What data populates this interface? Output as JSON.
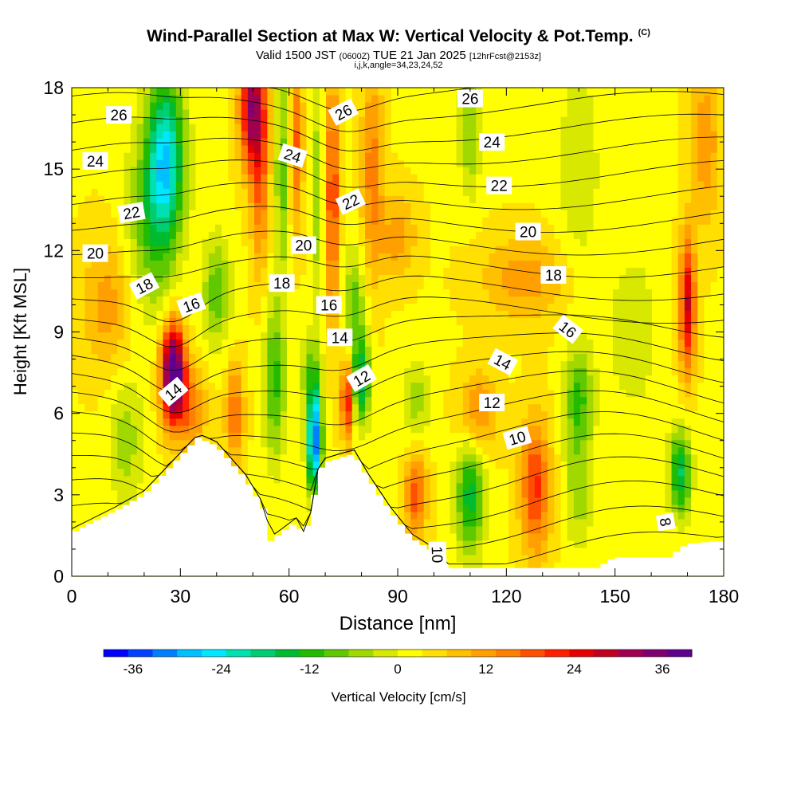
{
  "header": {
    "title": "Wind-Parallel Section at Max W: Vertical Velocity & Pot.Temp.",
    "copyright": "(C)",
    "valid": "Valid 1500 JST",
    "valid_z": "(0600Z)",
    "valid_date": "TUE 21 Jan 2025",
    "forecast": "[12hrFcst@2153z]",
    "params": "i,j,k,angle=34,23,24,52"
  },
  "chart_data": {
    "type": "heatmap",
    "xlabel": "Distance [nm]",
    "ylabel": "Height [Kft MSL]",
    "xlim": [
      0,
      180
    ],
    "ylim": [
      0,
      18
    ],
    "x_ticks": [
      "0",
      "30",
      "60",
      "90",
      "120",
      "150",
      "180"
    ],
    "y_ticks": [
      "0",
      "3",
      "6",
      "9",
      "12",
      "15",
      "18"
    ],
    "colorbar": {
      "label": "Vertical Velocity [cm/s]",
      "range": [
        -40,
        40
      ],
      "tick_labels": [
        "-36",
        "-24",
        "-12",
        "0",
        "12",
        "24",
        "36"
      ],
      "colors": [
        "#0000ff",
        "#0040ff",
        "#0080ff",
        "#00c0ff",
        "#00e8ff",
        "#00e0b0",
        "#00cc70",
        "#00bb30",
        "#22bb00",
        "#60c800",
        "#a0d800",
        "#d8e800",
        "#ffff00",
        "#ffe000",
        "#ffc000",
        "#ffa000",
        "#ff8000",
        "#ff5000",
        "#ff2000",
        "#e80000",
        "#c00020",
        "#a00050",
        "#800070",
        "#600090"
      ]
    },
    "terrain_profile": {
      "x": [
        0,
        12,
        20,
        35,
        40,
        48,
        53,
        55,
        58,
        62,
        64,
        66,
        68,
        70,
        75,
        78,
        82,
        88,
        94,
        100,
        102,
        104,
        110,
        120,
        140,
        145,
        150,
        155,
        160,
        165,
        170,
        180
      ],
      "height": [
        1.6,
        2.4,
        3.0,
        5.1,
        4.8,
        3.6,
        2.5,
        1.3,
        1.6,
        2.0,
        1.5,
        2.2,
        3.8,
        4.2,
        4.4,
        4.5,
        3.6,
        2.4,
        1.4,
        0.9,
        0.6,
        0.3,
        0.3,
        0.3,
        0.3,
        0.3,
        0.7,
        0.7,
        0.7,
        0.7,
        1.2,
        1.3
      ]
    },
    "vertical_velocity_cells": [
      {
        "x": 28,
        "y": 7.5,
        "sx": 3.2,
        "sy": 1.8,
        "w": 42
      },
      {
        "x": 33,
        "y": 6.2,
        "sx": 4,
        "sy": 1.5,
        "w": 12
      },
      {
        "x": 26,
        "y": 15.5,
        "sx": 5,
        "sy": 3.0,
        "w": -26
      },
      {
        "x": 22,
        "y": 13,
        "sx": 7,
        "sy": 3.5,
        "w": -12
      },
      {
        "x": 50,
        "y": 17.2,
        "sx": 3.5,
        "sy": 2.2,
        "w": 30
      },
      {
        "x": 52,
        "y": 14,
        "sx": 2.5,
        "sy": 3,
        "w": 12
      },
      {
        "x": 40,
        "y": 10.5,
        "sx": 4,
        "sy": 2,
        "w": -12
      },
      {
        "x": 45,
        "y": 6.0,
        "sx": 2.5,
        "sy": 1.8,
        "w": 14
      },
      {
        "x": 56,
        "y": 7.2,
        "sx": 3,
        "sy": 3,
        "w": -14
      },
      {
        "x": 58,
        "y": 15,
        "sx": 1.8,
        "sy": 4,
        "w": -12
      },
      {
        "x": 62,
        "y": 16,
        "sx": 1.8,
        "sy": 3,
        "w": 14
      },
      {
        "x": 67,
        "y": 5.0,
        "sx": 2.0,
        "sy": 1.8,
        "w": -38
      },
      {
        "x": 66,
        "y": 7.5,
        "sx": 3,
        "sy": 1.5,
        "w": -10
      },
      {
        "x": 72,
        "y": 14,
        "sx": 1.8,
        "sy": 4.5,
        "w": 18
      },
      {
        "x": 68,
        "y": 14,
        "sx": 1.5,
        "sy": 4,
        "w": -10
      },
      {
        "x": 76,
        "y": 6.5,
        "sx": 1.6,
        "sy": 1.5,
        "w": 22
      },
      {
        "x": 80,
        "y": 7.2,
        "sx": 2.5,
        "sy": 1.6,
        "w": -20
      },
      {
        "x": 78,
        "y": 10,
        "sx": 3,
        "sy": 2.0,
        "w": -12
      },
      {
        "x": 83,
        "y": 15,
        "sx": 3,
        "sy": 4,
        "w": 12
      },
      {
        "x": 95,
        "y": 3.0,
        "sx": 3,
        "sy": 1.5,
        "w": 16
      },
      {
        "x": 95,
        "y": 6.5,
        "sx": 4,
        "sy": 1.5,
        "w": -8
      },
      {
        "x": 110,
        "y": 3.0,
        "sx": 4,
        "sy": 2.2,
        "w": -18
      },
      {
        "x": 112,
        "y": 6.0,
        "sx": 5,
        "sy": 1.5,
        "w": 12
      },
      {
        "x": 128,
        "y": 3.3,
        "sx": 4,
        "sy": 2.5,
        "w": 18
      },
      {
        "x": 140,
        "y": 6.5,
        "sx": 4,
        "sy": 2.0,
        "w": -14
      },
      {
        "x": 140,
        "y": 3,
        "sx": 4,
        "sy": 2,
        "w": -8
      },
      {
        "x": 170,
        "y": 10,
        "sx": 2.2,
        "sy": 2.5,
        "w": 24
      },
      {
        "x": 168,
        "y": 3.8,
        "sx": 3,
        "sy": 1.6,
        "w": -20
      },
      {
        "x": 125,
        "y": 11,
        "sx": 12,
        "sy": 1.5,
        "w": 9
      },
      {
        "x": 110,
        "y": 16.5,
        "sx": 3,
        "sy": 2.5,
        "w": -10
      },
      {
        "x": 140,
        "y": 15,
        "sx": 6,
        "sy": 4,
        "w": -6
      },
      {
        "x": 175,
        "y": 16,
        "sx": 4,
        "sy": 3,
        "w": 10
      },
      {
        "x": 10,
        "y": 10,
        "sx": 7,
        "sy": 2.5,
        "w": 9
      },
      {
        "x": 15,
        "y": 5,
        "sx": 5,
        "sy": 2.5,
        "w": -8
      },
      {
        "x": 155,
        "y": 9,
        "sx": 7,
        "sy": 3,
        "w": -6
      },
      {
        "x": 90,
        "y": 12.5,
        "sx": 5,
        "sy": 1.5,
        "w": 9
      }
    ],
    "theta_contour_levels": [
      "8",
      "10",
      "12",
      "14",
      "16",
      "18",
      "20",
      "22",
      "24",
      "26"
    ],
    "contour_labels": [
      {
        "text": "26",
        "x": 13,
        "y": 17.0,
        "angle": 0
      },
      {
        "text": "24",
        "x": 6.5,
        "y": 15.3,
        "angle": 0
      },
      {
        "text": "22",
        "x": 16.5,
        "y": 13.4,
        "angle": -10
      },
      {
        "text": "20",
        "x": 6.5,
        "y": 11.9,
        "angle": 0
      },
      {
        "text": "18",
        "x": 20,
        "y": 10.7,
        "angle": -28
      },
      {
        "text": "16",
        "x": 33,
        "y": 10.0,
        "angle": -20
      },
      {
        "text": "14",
        "x": 28,
        "y": 6.8,
        "angle": -40
      },
      {
        "text": "26",
        "x": 75,
        "y": 17.1,
        "angle": -28
      },
      {
        "text": "24",
        "x": 61,
        "y": 15.5,
        "angle": 18
      },
      {
        "text": "22",
        "x": 77,
        "y": 13.8,
        "angle": -25
      },
      {
        "text": "20",
        "x": 64,
        "y": 12.2,
        "angle": 0
      },
      {
        "text": "18",
        "x": 58,
        "y": 10.8,
        "angle": 0
      },
      {
        "text": "16",
        "x": 71,
        "y": 10.0,
        "angle": 0
      },
      {
        "text": "14",
        "x": 74,
        "y": 8.8,
        "angle": 0
      },
      {
        "text": "12",
        "x": 80,
        "y": 7.3,
        "angle": -30
      },
      {
        "text": "26",
        "x": 110,
        "y": 17.6,
        "angle": 0
      },
      {
        "text": "24",
        "x": 116,
        "y": 16.0,
        "angle": 0
      },
      {
        "text": "22",
        "x": 118,
        "y": 14.4,
        "angle": 0
      },
      {
        "text": "20",
        "x": 126,
        "y": 12.7,
        "angle": 0
      },
      {
        "text": "18",
        "x": 133,
        "y": 11.1,
        "angle": 0
      },
      {
        "text": "16",
        "x": 137,
        "y": 9.1,
        "angle": 38
      },
      {
        "text": "14",
        "x": 119,
        "y": 7.9,
        "angle": 28
      },
      {
        "text": "12",
        "x": 116,
        "y": 6.4,
        "angle": 0
      },
      {
        "text": "10",
        "x": 123,
        "y": 5.1,
        "angle": -16
      },
      {
        "text": "10",
        "x": 101,
        "y": 0.8,
        "angle": 88
      },
      {
        "text": "8",
        "x": 164,
        "y": 2.0,
        "angle": 80
      }
    ]
  }
}
